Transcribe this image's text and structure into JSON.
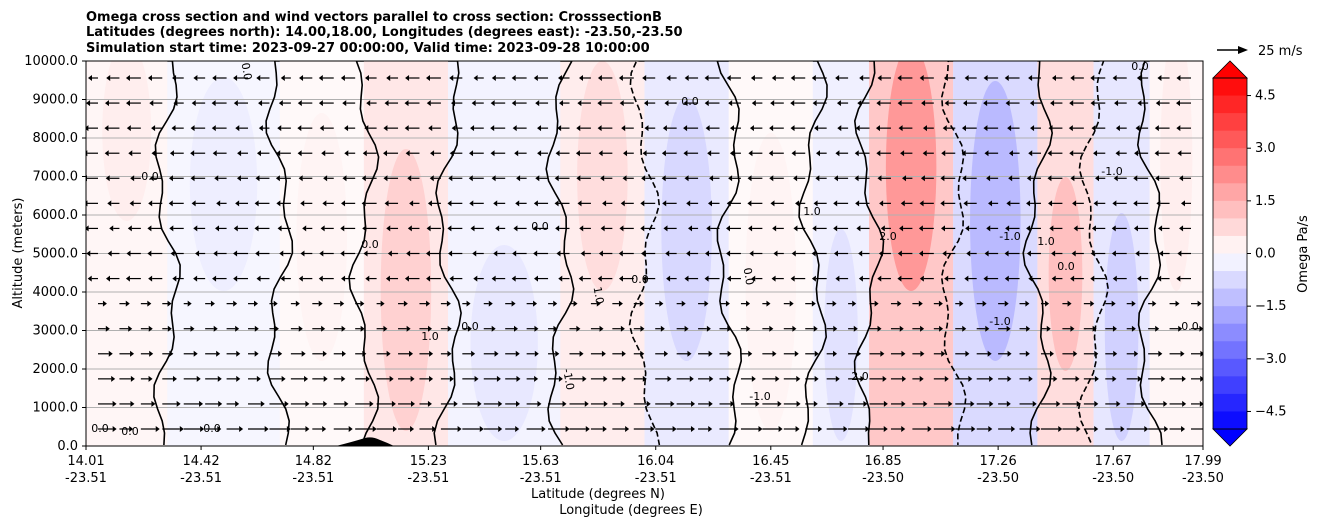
{
  "chart_data": {
    "type": "heatmap",
    "title_lines": [
      "Omega cross section and wind vectors parallel to cross section: CrosssectionB",
      "Latitudes (degrees north): 14.00,18.00, Longitudes (degrees east): -23.50,-23.50",
      "Simulation start time: 2023-09-27 00:00:00, Valid time: 2023-09-28 10:00:00"
    ],
    "ylabel": "Altitude (meters)",
    "xlabel_lines": [
      "Latitude (degrees N)",
      "Longitude (degrees E)"
    ],
    "ylim": [
      0,
      10000
    ],
    "y_ticks": [
      "0.0",
      "1000.0",
      "2000.0",
      "3000.0",
      "4000.0",
      "5000.0",
      "6000.0",
      "7000.0",
      "8000.0",
      "9000.0",
      "10000.0"
    ],
    "x_ticks": [
      {
        "lat": "14.01",
        "lon": "-23.51"
      },
      {
        "lat": "14.42",
        "lon": "-23.51"
      },
      {
        "lat": "14.82",
        "lon": "-23.51"
      },
      {
        "lat": "15.23",
        "lon": "-23.51"
      },
      {
        "lat": "15.63",
        "lon": "-23.51"
      },
      {
        "lat": "16.04",
        "lon": "-23.51"
      },
      {
        "lat": "16.45",
        "lon": "-23.51"
      },
      {
        "lat": "16.85",
        "lon": "-23.50"
      },
      {
        "lat": "17.26",
        "lon": "-23.50"
      },
      {
        "lat": "17.67",
        "lon": "-23.50"
      },
      {
        "lat": "17.99",
        "lon": "-23.50"
      }
    ],
    "grid": "horizontal",
    "colorbar": {
      "label": "Omega Pa/s",
      "range": [
        -5,
        5
      ],
      "ticks": [
        "4.5",
        "3.0",
        "1.5",
        "0.0",
        "−1.5",
        "−3.0",
        "−4.5"
      ],
      "colormap": "bwr",
      "extend": "both"
    },
    "wind_key": {
      "label": "25 m/s"
    },
    "contour_labels": [
      "0.0",
      "1.0",
      "2.0",
      "-1.0"
    ],
    "omega_bands": [
      {
        "x": [
          14.01,
          14.3
        ],
        "value": 0.3
      },
      {
        "x": [
          14.3,
          14.7
        ],
        "value": -0.3
      },
      {
        "x": [
          14.7,
          15.0
        ],
        "value": 0.2
      },
      {
        "x": [
          15.0,
          15.3
        ],
        "value": 0.8
      },
      {
        "x": [
          15.3,
          15.7
        ],
        "value": -0.4
      },
      {
        "x": [
          15.7,
          16.0
        ],
        "value": 0.6
      },
      {
        "x": [
          16.0,
          16.3
        ],
        "value": -0.7
      },
      {
        "x": [
          16.3,
          16.6
        ],
        "value": 0.2
      },
      {
        "x": [
          16.6,
          16.8
        ],
        "value": -0.5
      },
      {
        "x": [
          16.8,
          17.1
        ],
        "value": 1.8
      },
      {
        "x": [
          17.1,
          17.4
        ],
        "value": -1.2
      },
      {
        "x": [
          17.4,
          17.6
        ],
        "value": 1.1
      },
      {
        "x": [
          17.6,
          17.8
        ],
        "value": -0.8
      },
      {
        "x": [
          17.8,
          17.99
        ],
        "value": 0.3
      }
    ],
    "colors": {
      "positive": "#ff0000",
      "negative": "#0000ff",
      "neutral": "#ffffff"
    }
  }
}
